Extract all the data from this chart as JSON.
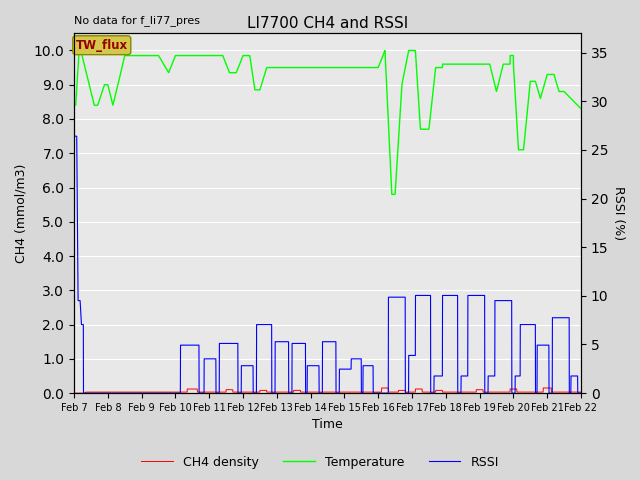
{
  "title": "LI7700 CH4 and RSSI",
  "subtitle": "No data for f_li77_pres",
  "xlabel": "Time",
  "ylabel_left": "CH4 (mmol/m3)",
  "ylabel_right": "RSSI (%)",
  "ylim_left": [
    0.0,
    10.5
  ],
  "ylim_right": [
    0,
    37
  ],
  "yticks_left": [
    0.0,
    1.0,
    2.0,
    3.0,
    4.0,
    5.0,
    6.0,
    7.0,
    8.0,
    9.0,
    10.0
  ],
  "yticks_right": [
    0,
    5,
    10,
    15,
    20,
    25,
    30,
    35
  ],
  "background_color": "#d8d8d8",
  "plot_bg_color": "#e8e8e8",
  "grid_color": "#ffffff",
  "ch4_color": "#ff0000",
  "temp_color": "#00ff00",
  "rssi_color": "#0000ff",
  "legend_labels": [
    "CH4 density",
    "Temperature",
    "RSSI"
  ],
  "tw_flux_label": "TW_flux",
  "tw_flux_color": "#d4c84a",
  "tw_flux_text_color": "#990000",
  "xtick_labels": [
    "Feb 7",
    "Feb 8",
    "Feb 9",
    "Feb 10",
    "Feb 11",
    "Feb 12",
    "Feb 13",
    "Feb 14",
    "Feb 15",
    "Feb 16",
    "Feb 17",
    "Feb 18",
    "Feb 19",
    "Feb 20",
    "Feb 21",
    "Feb 22"
  ],
  "figsize": [
    6.4,
    4.8
  ],
  "dpi": 100
}
